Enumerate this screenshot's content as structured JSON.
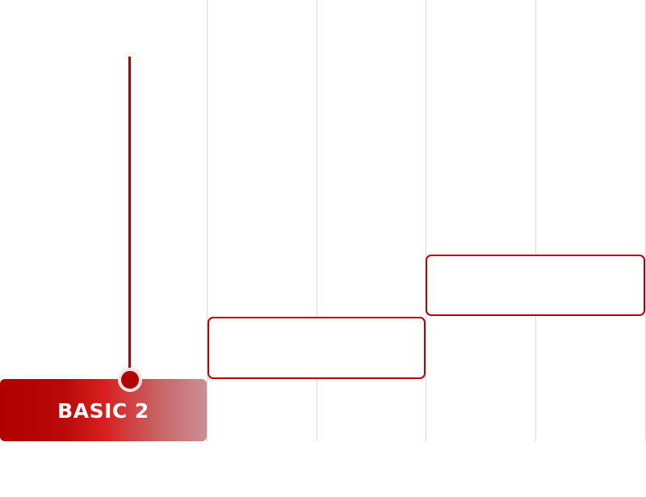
{
  "label": {
    "text": "BASIC 2"
  },
  "colors": {
    "accent": "#b00000",
    "grid": "#e2d4d6"
  }
}
